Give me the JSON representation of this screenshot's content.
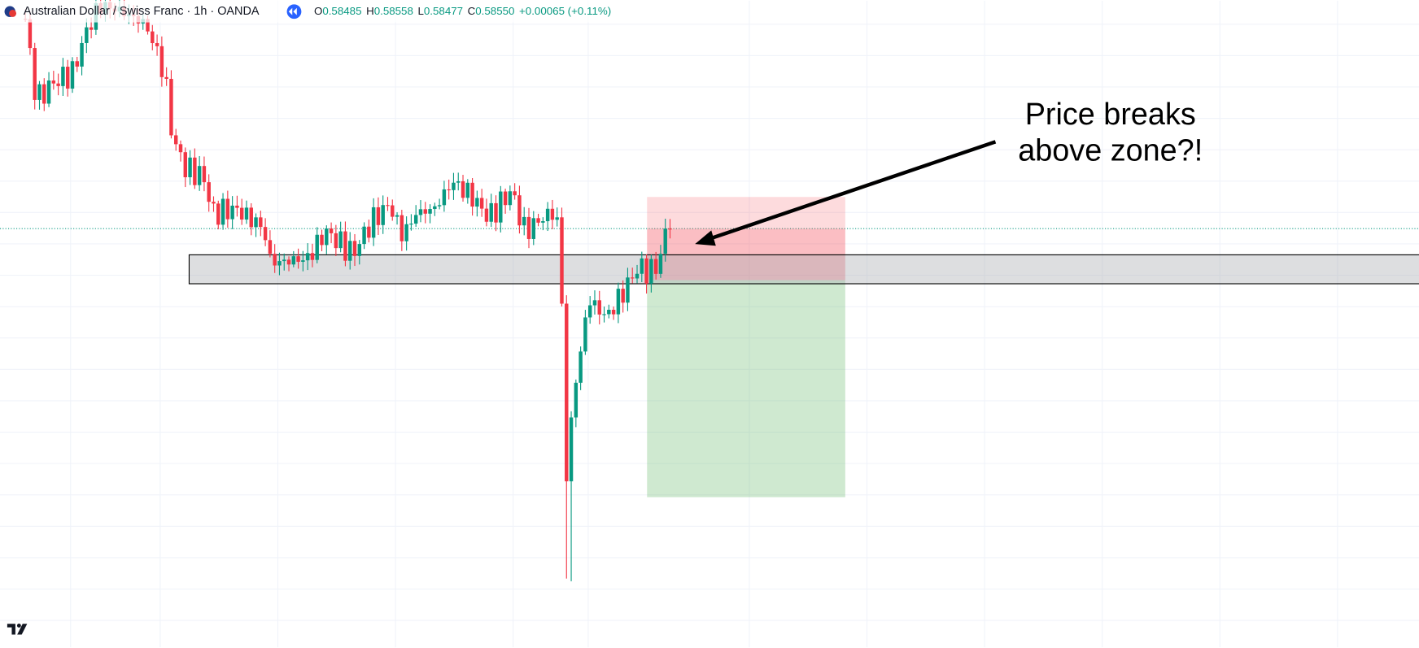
{
  "header": {
    "symbol": "Australian Dollar / Swiss Franc · 1h · OANDA",
    "ohlc": [
      {
        "label": "O",
        "value": "0.58485"
      },
      {
        "label": "H",
        "value": "0.58558"
      },
      {
        "label": "L",
        "value": "0.58477"
      },
      {
        "label": "C",
        "value": "0.58550"
      }
    ],
    "change": "+0.00065 (+0.11%)"
  },
  "annotation": {
    "lines": [
      "Price breaks",
      "above zone?!"
    ]
  }
}
